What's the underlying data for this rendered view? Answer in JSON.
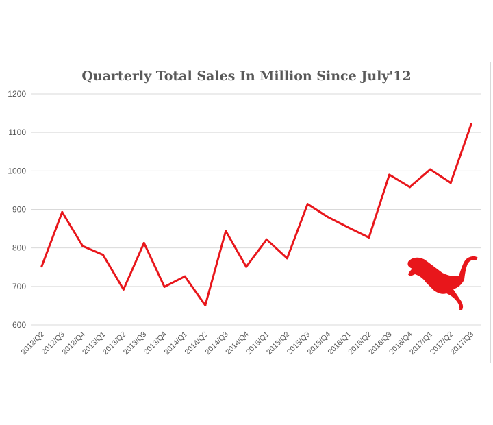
{
  "chart_data": {
    "type": "line",
    "title": "Quarterly Total Sales In Million Since July'12",
    "xlabel": "",
    "ylabel": "",
    "ylim": [
      600,
      1200
    ],
    "yticks": [
      600,
      700,
      800,
      900,
      1000,
      1100,
      1200
    ],
    "grid": true,
    "legend": "none",
    "categories": [
      "2012/Q2",
      "2012/Q3",
      "2012/Q4",
      "2013/Q1",
      "2013/Q2",
      "2013/Q3",
      "2013/Q4",
      "2014/Q1",
      "2014/Q2",
      "2014/Q3",
      "2014/Q4",
      "2015/Q1",
      "2015/Q2",
      "2015/Q3",
      "2015/Q4",
      "2016/Q1",
      "2016/Q2",
      "2016/Q3",
      "2016/Q4",
      "2017/Q1",
      "2017/Q2",
      "2017/Q3"
    ],
    "series": [
      {
        "values": [
          752,
          893,
          805,
          782,
          692,
          813,
          699,
          726,
          651,
          844,
          751,
          822,
          773,
          914,
          880,
          853,
          827,
          990,
          958,
          1004,
          969,
          1121
        ],
        "color": "#e8161b"
      }
    ]
  },
  "logo": {
    "icon": "puma-logo-icon",
    "color": "#e8161b"
  }
}
